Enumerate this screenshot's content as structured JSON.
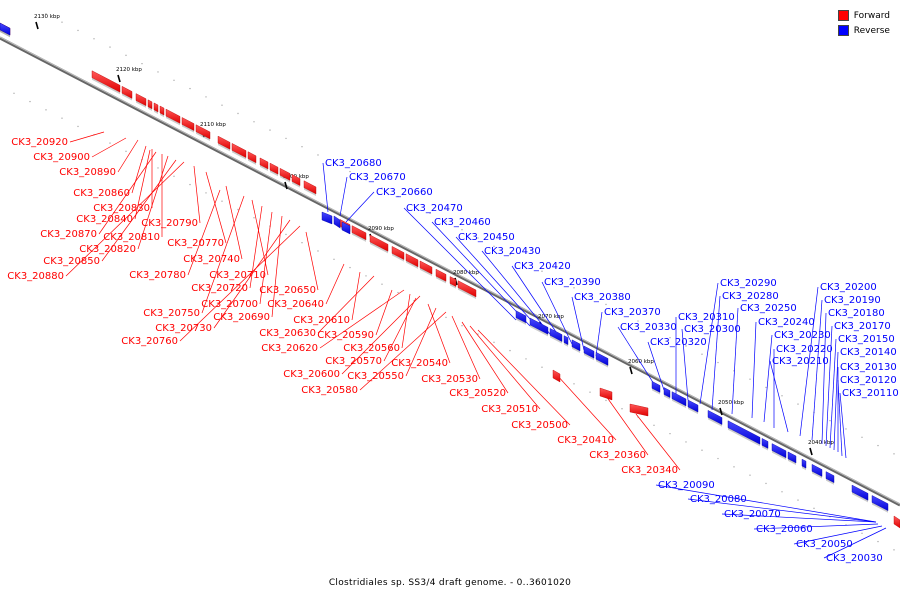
{
  "legend": {
    "forward_label": "Forward",
    "reverse_label": "Reverse",
    "forward_color": "#ff0000",
    "reverse_color": "#0000ff"
  },
  "caption": "Clostridiales sp. SS3/4 draft genome. - 0..3601020",
  "axis": {
    "ticks": [
      "2130 kbp",
      "2120 kbp",
      "2110 kbp",
      "2100 kbp",
      "2090 kbp",
      "2080 kbp",
      "2070 kbp",
      "2060 kbp",
      "2050 kbp",
      "2040 kbp"
    ]
  },
  "labels": {
    "forward": [
      "CK3_20920",
      "CK3_20900",
      "CK3_20890",
      "CK3_20860",
      "CK3_20830",
      "CK3_20840",
      "CK3_20870",
      "CK3_20810",
      "CK3_20820",
      "CK3_20850",
      "CK3_20880",
      "CK3_20790",
      "CK3_20770",
      "CK3_20740",
      "CK3_20780",
      "CK3_20710",
      "CK3_20720",
      "CK3_20700",
      "CK3_20690",
      "CK3_20750",
      "CK3_20730",
      "CK3_20760",
      "CK3_20650",
      "CK3_20640",
      "CK3_20610",
      "CK3_20630",
      "CK3_20590",
      "CK3_20620",
      "CK3_20560",
      "CK3_20570",
      "CK3_20540",
      "CK3_20600",
      "CK3_20550",
      "CK3_20580",
      "CK3_20530",
      "CK3_20520",
      "CK3_20510",
      "CK3_20500",
      "CK3_20410",
      "CK3_20360",
      "CK3_20340"
    ],
    "reverse": [
      "CK3_20680",
      "CK3_20670",
      "CK3_20660",
      "CK3_20470",
      "CK3_20460",
      "CK3_20450",
      "CK3_20430",
      "CK3_20420",
      "CK3_20390",
      "CK3_20380",
      "CK3_20370",
      "CK3_20330",
      "CK3_20320",
      "CK3_20310",
      "CK3_20300",
      "CK3_20290",
      "CK3_20280",
      "CK3_20250",
      "CK3_20240",
      "CK3_20230",
      "CK3_20220",
      "CK3_20210",
      "CK3_20200",
      "CK3_20190",
      "CK3_20180",
      "CK3_20170",
      "CK3_20150",
      "CK3_20140",
      "CK3_20130",
      "CK3_20120",
      "CK3_20110",
      "CK3_20090",
      "CK3_20080",
      "CK3_20070",
      "CK3_20060",
      "CK3_20050",
      "CK3_20030"
    ]
  }
}
